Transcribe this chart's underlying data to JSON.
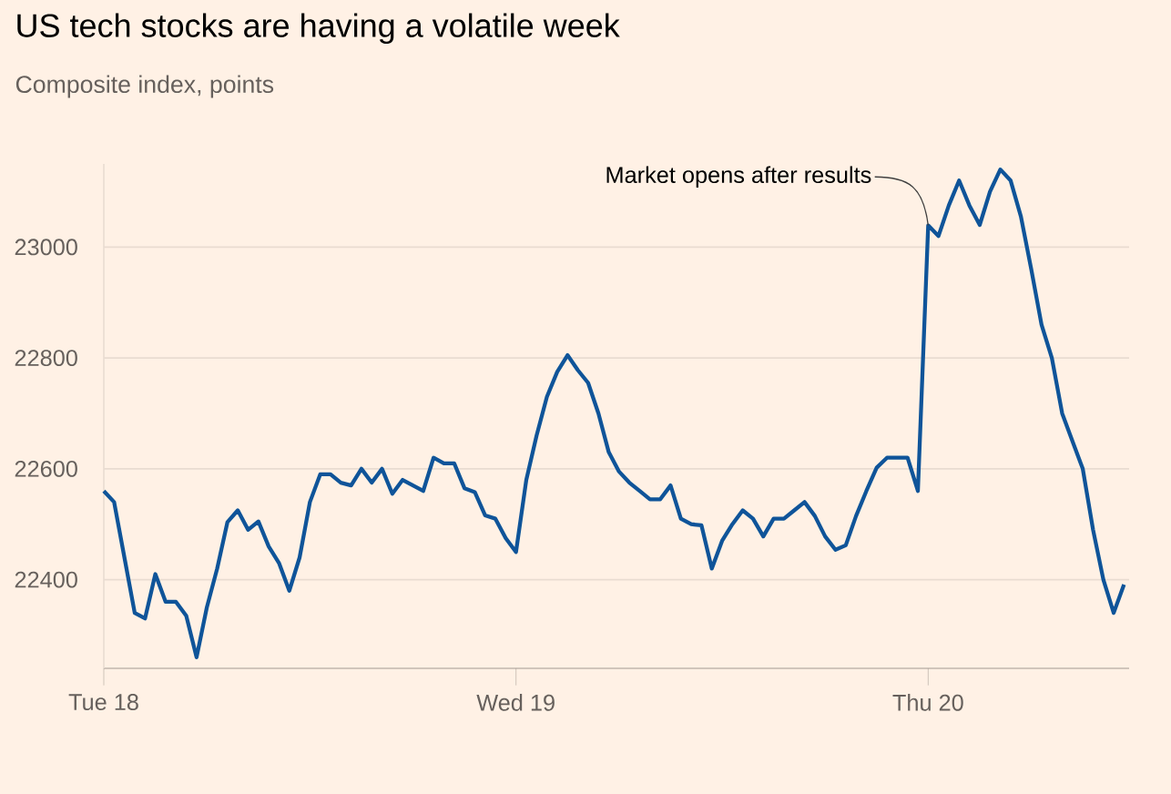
{
  "chart_data": {
    "type": "line",
    "title": "US tech stocks are having a volatile week",
    "subtitle": "Composite index, points",
    "categories": [
      "Tue 18",
      null,
      null,
      null,
      null,
      null,
      null,
      null,
      null,
      null,
      null,
      null,
      null,
      null,
      null,
      null,
      null,
      null,
      null,
      null,
      null,
      null,
      null,
      null,
      null,
      null,
      null,
      null,
      null,
      null,
      null,
      null,
      null,
      null,
      null,
      null,
      null,
      null,
      null,
      null,
      "Wed 19",
      null,
      null,
      null,
      null,
      null,
      null,
      null,
      null,
      null,
      null,
      null,
      null,
      null,
      null,
      null,
      null,
      null,
      null,
      null,
      null,
      null,
      null,
      null,
      null,
      null,
      null,
      null,
      null,
      null,
      null,
      null,
      null,
      null,
      null,
      null,
      null,
      null,
      null,
      null,
      "Thu 20",
      null,
      null,
      null,
      null,
      null,
      null,
      null,
      null,
      null,
      null,
      null,
      null,
      null,
      null,
      null,
      null,
      null,
      null,
      null
    ],
    "series": [
      {
        "color": "#0f5499",
        "values": [
          22560,
          22540,
          22440,
          22340,
          22330,
          22410,
          22360,
          22360,
          22335,
          22260,
          22350,
          22420,
          22504,
          22525,
          22490,
          22505,
          22460,
          22430,
          22380,
          22440,
          22540,
          22590,
          22590,
          22575,
          22570,
          22600,
          22575,
          22600,
          22555,
          22580,
          22570,
          22560,
          22620,
          22610,
          22610,
          22565,
          22558,
          22516,
          22510,
          22475,
          22450,
          22580,
          22660,
          22730,
          22775,
          22805,
          22778,
          22755,
          22700,
          22630,
          22595,
          22575,
          22560,
          22545,
          22545,
          22570,
          22510,
          22500,
          22498,
          22420,
          22470,
          22500,
          22525,
          22510,
          22478,
          22510,
          22510,
          22525,
          22540,
          22515,
          22478,
          22454,
          22462,
          22515,
          22560,
          22602,
          22620,
          22620,
          22620,
          22560,
          23039,
          23020,
          23075,
          23120,
          23075,
          23040,
          23100,
          23140,
          23120,
          23055,
          22960,
          22860,
          22800,
          22700,
          22650,
          22600,
          22490,
          22400,
          22340,
          22391
        ]
      }
    ],
    "ylim": [
      22240,
      23150
    ],
    "yticks": [
      22400,
      22600,
      22800,
      23000
    ],
    "grid": "y",
    "annotations": [
      {
        "text": "Market opens after results",
        "x": "Thu 20",
        "y": 23039
      }
    ]
  }
}
